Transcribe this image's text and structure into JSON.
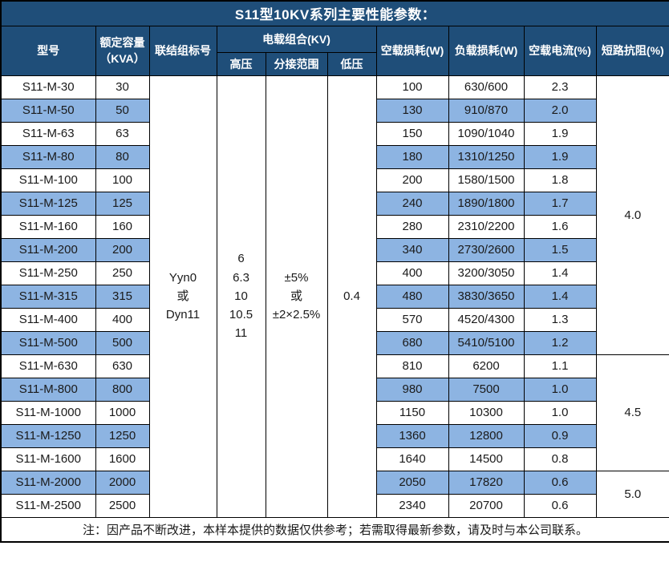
{
  "title": "S11型10KV系列主要性能参数：",
  "colors": {
    "header_bg": "#1f4e79",
    "band_bg": "#8db4e2",
    "border": "#000000",
    "header_text": "#ffffff"
  },
  "header": {
    "model": "型号",
    "capacity_line1": "额定容量",
    "capacity_line2": "（KVA）",
    "vector_group": "联结组标号",
    "voltage_combo": "电载组合(KV)",
    "hv": "高压",
    "tap_range": "分接范围",
    "lv": "低压",
    "no_load_loss": "空载损耗(W)",
    "load_loss": "负载损耗(W)",
    "no_load_current": "空载电流(%)",
    "impedance": "短路抗阻(%)"
  },
  "merged": {
    "vector_group_lines": [
      "Yyn0",
      "或",
      "Dyn11"
    ],
    "hv_lines": [
      "6",
      "6.3",
      "10",
      "10.5",
      "11"
    ],
    "tap_range_lines": [
      "±5%",
      "或",
      "±2×2.5%"
    ],
    "lv": "0.4"
  },
  "rows": [
    {
      "model": "S11-M-30",
      "capacity": "30",
      "no_load_loss": "100",
      "load_loss": "630/600",
      "no_load_current": "2.3"
    },
    {
      "model": "S11-M-50",
      "capacity": "50",
      "no_load_loss": "130",
      "load_loss": "910/870",
      "no_load_current": "2.0"
    },
    {
      "model": "S11-M-63",
      "capacity": "63",
      "no_load_loss": "150",
      "load_loss": "1090/1040",
      "no_load_current": "1.9"
    },
    {
      "model": "S11-M-80",
      "capacity": "80",
      "no_load_loss": "180",
      "load_loss": "1310/1250",
      "no_load_current": "1.9"
    },
    {
      "model": "S11-M-100",
      "capacity": "100",
      "no_load_loss": "200",
      "load_loss": "1580/1500",
      "no_load_current": "1.8"
    },
    {
      "model": "S11-M-125",
      "capacity": "125",
      "no_load_loss": "240",
      "load_loss": "1890/1800",
      "no_load_current": "1.7"
    },
    {
      "model": "S11-M-160",
      "capacity": "160",
      "no_load_loss": "280",
      "load_loss": "2310/2200",
      "no_load_current": "1.6"
    },
    {
      "model": "S11-M-200",
      "capacity": "200",
      "no_load_loss": "340",
      "load_loss": "2730/2600",
      "no_load_current": "1.5"
    },
    {
      "model": "S11-M-250",
      "capacity": "250",
      "no_load_loss": "400",
      "load_loss": "3200/3050",
      "no_load_current": "1.4"
    },
    {
      "model": "S11-M-315",
      "capacity": "315",
      "no_load_loss": "480",
      "load_loss": "3830/3650",
      "no_load_current": "1.4"
    },
    {
      "model": "S11-M-400",
      "capacity": "400",
      "no_load_loss": "570",
      "load_loss": "4520/4300",
      "no_load_current": "1.3"
    },
    {
      "model": "S11-M-500",
      "capacity": "500",
      "no_load_loss": "680",
      "load_loss": "5410/5100",
      "no_load_current": "1.2"
    },
    {
      "model": "S11-M-630",
      "capacity": "630",
      "no_load_loss": "810",
      "load_loss": "6200",
      "no_load_current": "1.1"
    },
    {
      "model": "S11-M-800",
      "capacity": "800",
      "no_load_loss": "980",
      "load_loss": "7500",
      "no_load_current": "1.0"
    },
    {
      "model": "S11-M-1000",
      "capacity": "1000",
      "no_load_loss": "1150",
      "load_loss": "10300",
      "no_load_current": "1.0"
    },
    {
      "model": "S11-M-1250",
      "capacity": "1250",
      "no_load_loss": "1360",
      "load_loss": "12800",
      "no_load_current": "0.9"
    },
    {
      "model": "S11-M-1600",
      "capacity": "1600",
      "no_load_loss": "1640",
      "load_loss": "14500",
      "no_load_current": "0.8"
    },
    {
      "model": "S11-M-2000",
      "capacity": "2000",
      "no_load_loss": "2050",
      "load_loss": "17820",
      "no_load_current": "0.6"
    },
    {
      "model": "S11-M-2500",
      "capacity": "2500",
      "no_load_loss": "2340",
      "load_loss": "20700",
      "no_load_current": "0.6"
    }
  ],
  "impedance_sections": [
    {
      "value": "4.0",
      "start_index": 0,
      "row_span": 12
    },
    {
      "value": "4.5",
      "start_index": 12,
      "row_span": 5
    },
    {
      "value": "5.0",
      "start_index": 17,
      "row_span": 2
    }
  ],
  "note": "注：因产品不断改进，本样本提供的数据仅供参考；若需取得最新参数，请及时与本公司联系。"
}
